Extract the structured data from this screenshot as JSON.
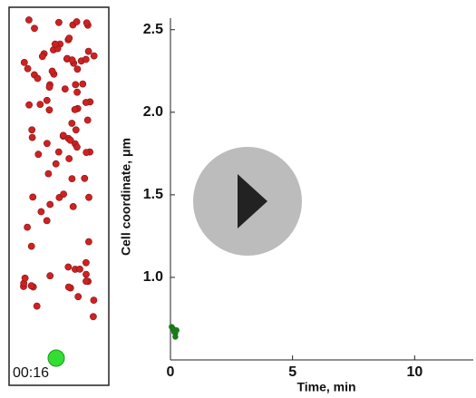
{
  "chart_data": {
    "type": "scatter",
    "xlabel": "Time, min",
    "ylabel": "Cell coordinate, μm",
    "x": [
      0.05,
      0.1,
      0.15,
      0.2,
      0.2,
      0.25
    ],
    "y": [
      0.7,
      0.69,
      0.67,
      0.66,
      0.64,
      0.68
    ],
    "color": "#1a7a1a",
    "xlim": [
      0,
      12.4
    ],
    "ylim": [
      0.5,
      2.57
    ],
    "xticks": [
      0,
      5,
      10
    ],
    "yticks": [
      {
        "value": 1,
        "label": "1.0"
      },
      1.5,
      {
        "value": 2,
        "label": "2.0"
      },
      2.5
    ]
  },
  "video": {
    "timestamp": "00:16"
  }
}
